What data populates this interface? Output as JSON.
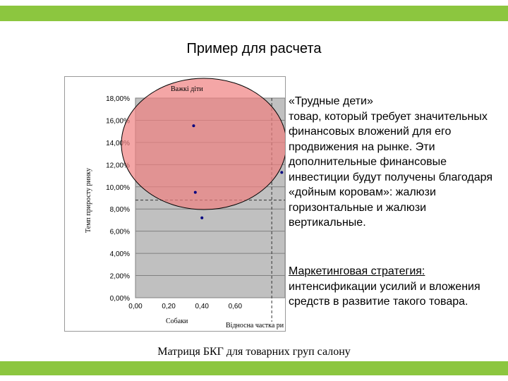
{
  "theme": {
    "accent": "#8cc63f",
    "ellipse_fill": "#f08080",
    "plot_bg": "#c0c0c0",
    "point_color": "#000080"
  },
  "slide": {
    "title": "Пример для расчета",
    "caption": "Матриця БКГ для товарних груп салону"
  },
  "text": {
    "heading": "«Трудные дети»",
    "body": "товар, который требует значительных финансовых вложений для его продвижения на рынке. Эти дополнительные финансовые инвестиции будут получены благодаря «дойным коровам»: жалюзи горизонтальные и жалюзи вертикальные.",
    "strategy_label": "Маркетинговая стратегия:",
    "strategy_body": "интенсификации усилий и вложения средств в развитие такого товара."
  },
  "chart_data": {
    "type": "scatter",
    "ellipse_label": "Важкі діти",
    "ylabel": "Темп приросту ринку",
    "xlabel_left": "Собаки",
    "xlabel_right": "Відносна частка ри",
    "xlim": [
      0,
      0.9
    ],
    "ylim": [
      0,
      0.18
    ],
    "x_ticks": [
      "0,00",
      "0,20",
      "0,40",
      "0,60"
    ],
    "y_ticks": [
      "0,00%",
      "2,00%",
      "4,00%",
      "6,00%",
      "8,00%",
      "10,00%",
      "12,00%",
      "14,00%",
      "16,00%",
      "18,00%"
    ],
    "points": [
      {
        "x": 0.35,
        "y": 0.155
      },
      {
        "x": 0.88,
        "y": 0.113
      },
      {
        "x": 0.36,
        "y": 0.095
      },
      {
        "x": 0.4,
        "y": 0.072
      }
    ],
    "reference_lines": {
      "x": 0.82,
      "y": 0.088
    },
    "grid": true
  }
}
